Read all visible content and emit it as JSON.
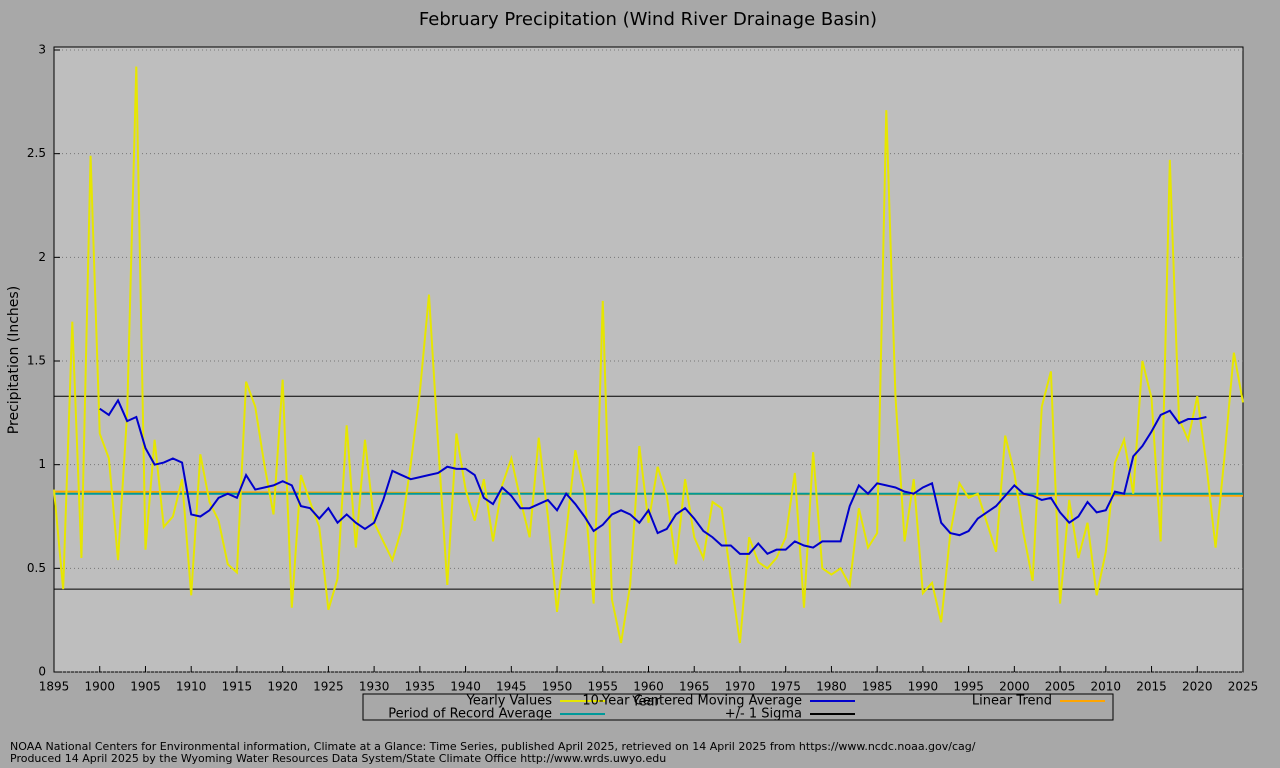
{
  "chart_data": {
    "type": "line",
    "title": "February Precipitation (Wind River Drainage Basin)",
    "x_label": "Year",
    "y_label": "Precipitation (Inches)",
    "xlim": [
      1895,
      2025
    ],
    "xticks": [
      1895,
      1900,
      1905,
      1910,
      1915,
      1920,
      1925,
      1930,
      1935,
      1940,
      1945,
      1950,
      1955,
      1960,
      1965,
      1970,
      1975,
      1980,
      1985,
      1990,
      1995,
      2000,
      2005,
      2010,
      2015,
      2020,
      2025
    ],
    "ylim": [
      0,
      3
    ],
    "yticks": [
      0,
      0.5,
      1,
      1.5,
      2,
      2.5,
      3
    ],
    "grid": true,
    "series": [
      {
        "name": "Yearly Values",
        "color": "#e6e600",
        "x": [
          1895,
          1896,
          1897,
          1898,
          1899,
          1900,
          1901,
          1902,
          1903,
          1904,
          1905,
          1906,
          1907,
          1908,
          1909,
          1910,
          1911,
          1912,
          1913,
          1914,
          1915,
          1916,
          1917,
          1918,
          1919,
          1920,
          1921,
          1922,
          1923,
          1924,
          1925,
          1926,
          1927,
          1928,
          1929,
          1930,
          1931,
          1932,
          1933,
          1934,
          1935,
          1936,
          1937,
          1938,
          1939,
          1940,
          1941,
          1942,
          1943,
          1944,
          1945,
          1946,
          1947,
          1948,
          1949,
          1950,
          1951,
          1952,
          1953,
          1954,
          1955,
          1956,
          1957,
          1958,
          1959,
          1960,
          1961,
          1962,
          1963,
          1964,
          1965,
          1966,
          1967,
          1968,
          1969,
          1970,
          1971,
          1972,
          1973,
          1974,
          1975,
          1976,
          1977,
          1978,
          1979,
          1980,
          1981,
          1982,
          1983,
          1984,
          1985,
          1986,
          1987,
          1988,
          1989,
          1990,
          1991,
          1992,
          1993,
          1994,
          1995,
          1996,
          1997,
          1998,
          1999,
          2000,
          2001,
          2002,
          2003,
          2004,
          2005,
          2006,
          2007,
          2008,
          2009,
          2010,
          2011,
          2012,
          2013,
          2014,
          2015,
          2016,
          2017,
          2018,
          2019,
          2020,
          2021,
          2022,
          2023,
          2024,
          2025
        ],
        "values": [
          0.88,
          0.4,
          1.69,
          0.55,
          2.49,
          1.15,
          1.03,
          0.54,
          1.25,
          2.92,
          0.59,
          1.12,
          0.7,
          0.75,
          0.93,
          0.37,
          1.05,
          0.82,
          0.73,
          0.52,
          0.48,
          1.4,
          1.28,
          1.0,
          0.76,
          1.41,
          0.31,
          0.95,
          0.82,
          0.7,
          0.3,
          0.45,
          1.19,
          0.6,
          1.12,
          0.72,
          0.63,
          0.54,
          0.69,
          1.0,
          1.35,
          1.82,
          1.1,
          0.42,
          1.15,
          0.88,
          0.73,
          0.93,
          0.63,
          0.9,
          1.03,
          0.83,
          0.65,
          1.13,
          0.75,
          0.29,
          0.67,
          1.07,
          0.87,
          0.33,
          1.79,
          0.35,
          0.14,
          0.42,
          1.09,
          0.72,
          0.99,
          0.85,
          0.52,
          0.93,
          0.65,
          0.55,
          0.82,
          0.79,
          0.45,
          0.14,
          0.65,
          0.53,
          0.5,
          0.55,
          0.65,
          0.96,
          0.31,
          1.06,
          0.5,
          0.47,
          0.5,
          0.42,
          0.79,
          0.6,
          0.67,
          2.71,
          1.33,
          0.63,
          0.93,
          0.38,
          0.43,
          0.24,
          0.67,
          0.91,
          0.84,
          0.86,
          0.72,
          0.58,
          1.14,
          0.96,
          0.67,
          0.44,
          1.28,
          1.45,
          0.33,
          0.83,
          0.55,
          0.72,
          0.37,
          0.58,
          1.01,
          1.12,
          0.86,
          1.5,
          1.32,
          0.63,
          2.47,
          1.22,
          1.12,
          1.33,
          1.0,
          0.6,
          1.05,
          1.54,
          1.3
        ]
      },
      {
        "name": "10-Year Centered Moving Average",
        "color": "#0000cc",
        "x": [
          1900,
          1901,
          1902,
          1903,
          1904,
          1905,
          1906,
          1907,
          1908,
          1909,
          1910,
          1911,
          1912,
          1913,
          1914,
          1915,
          1916,
          1917,
          1918,
          1919,
          1920,
          1921,
          1922,
          1923,
          1924,
          1925,
          1926,
          1927,
          1928,
          1929,
          1930,
          1931,
          1932,
          1933,
          1934,
          1935,
          1936,
          1937,
          1938,
          1939,
          1940,
          1941,
          1942,
          1943,
          1944,
          1945,
          1946,
          1947,
          1948,
          1949,
          1950,
          1951,
          1952,
          1953,
          1954,
          1955,
          1956,
          1957,
          1958,
          1959,
          1960,
          1961,
          1962,
          1963,
          1964,
          1965,
          1966,
          1967,
          1968,
          1969,
          1970,
          1971,
          1972,
          1973,
          1974,
          1975,
          1976,
          1977,
          1978,
          1979,
          1980,
          1981,
          1982,
          1983,
          1984,
          1985,
          1986,
          1987,
          1988,
          1989,
          1990,
          1991,
          1992,
          1993,
          1994,
          1995,
          1996,
          1997,
          1998,
          1999,
          2000,
          2001,
          2002,
          2003,
          2004,
          2005,
          2006,
          2007,
          2008,
          2009,
          2010,
          2011,
          2012,
          2013,
          2014,
          2015,
          2016,
          2017,
          2018,
          2019,
          2020,
          2021
        ],
        "values": [
          1.27,
          1.24,
          1.31,
          1.21,
          1.23,
          1.08,
          1.0,
          1.01,
          1.03,
          1.01,
          0.76,
          0.75,
          0.78,
          0.84,
          0.86,
          0.84,
          0.95,
          0.88,
          0.89,
          0.9,
          0.92,
          0.9,
          0.8,
          0.79,
          0.74,
          0.79,
          0.72,
          0.76,
          0.72,
          0.69,
          0.72,
          0.83,
          0.97,
          0.95,
          0.93,
          0.94,
          0.95,
          0.96,
          0.99,
          0.98,
          0.98,
          0.95,
          0.84,
          0.81,
          0.89,
          0.85,
          0.79,
          0.79,
          0.81,
          0.83,
          0.78,
          0.86,
          0.81,
          0.75,
          0.68,
          0.71,
          0.76,
          0.78,
          0.76,
          0.72,
          0.78,
          0.67,
          0.69,
          0.76,
          0.79,
          0.74,
          0.68,
          0.65,
          0.61,
          0.61,
          0.57,
          0.57,
          0.62,
          0.57,
          0.59,
          0.59,
          0.63,
          0.61,
          0.6,
          0.63,
          0.63,
          0.63,
          0.8,
          0.9,
          0.86,
          0.91,
          0.9,
          0.89,
          0.87,
          0.86,
          0.89,
          0.91,
          0.72,
          0.67,
          0.66,
          0.68,
          0.74,
          0.77,
          0.8,
          0.85,
          0.9,
          0.86,
          0.85,
          0.83,
          0.84,
          0.77,
          0.72,
          0.75,
          0.82,
          0.77,
          0.78,
          0.87,
          0.86,
          1.04,
          1.09,
          1.16,
          1.24,
          1.26,
          1.2,
          1.22,
          1.22,
          1.23
        ]
      },
      {
        "name": "Period of Record Average",
        "color": "#009999",
        "x": [
          1895,
          2025
        ],
        "values": [
          0.86,
          0.86
        ]
      },
      {
        "name": "Linear Trend",
        "color": "#ffa500",
        "x": [
          1895,
          2025
        ],
        "values": [
          0.87,
          0.85
        ]
      },
      {
        "name": "+/- 1 Sigma",
        "color": "#000000",
        "style": "hlines",
        "values": [
          1.33,
          0.4
        ]
      }
    ],
    "footnotes": [
      "NOAA National Centers for Environmental information, Climate at a Glance: Time Series, published April 2025, retrieved on 14 April 2025 from https://www.ncdc.noaa.gov/cag/",
      "Produced 14 April 2025 by the Wyoming Water Resources Data System/State Climate Office http://www.wrds.uwyo.edu"
    ]
  }
}
